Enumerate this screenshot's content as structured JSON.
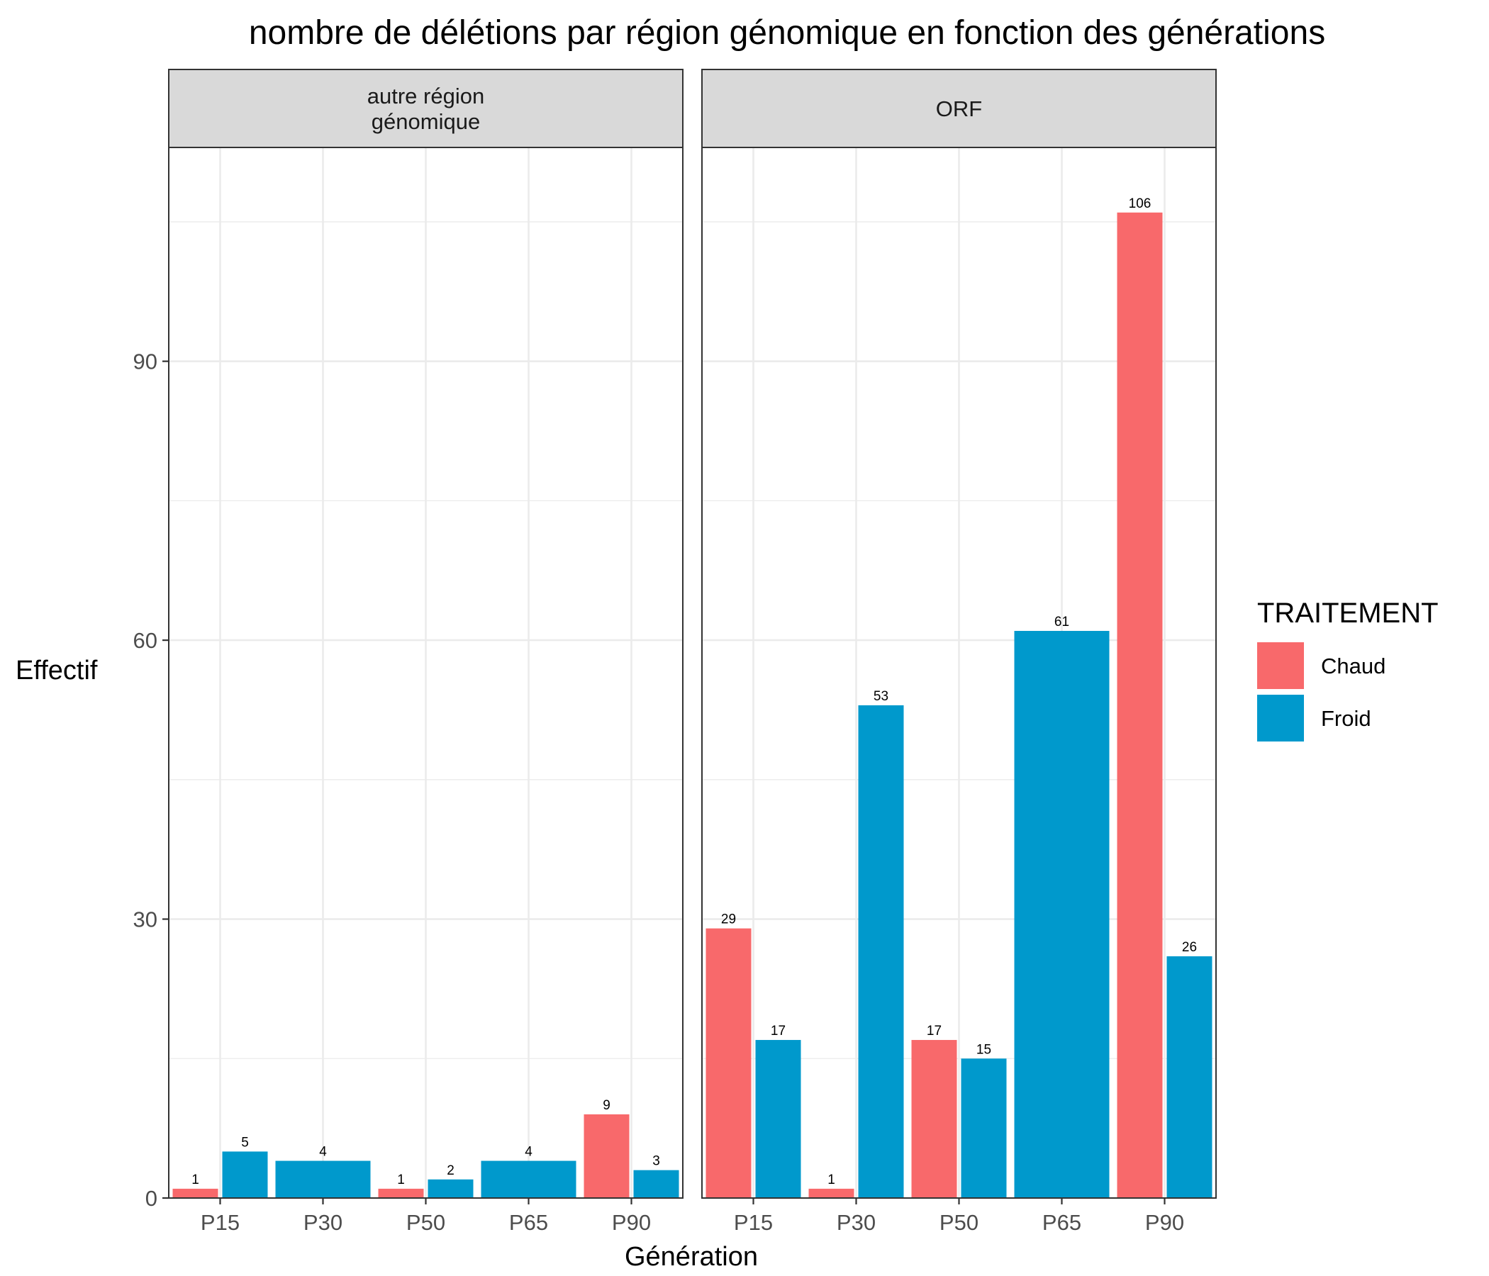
{
  "chart_data": {
    "type": "bar",
    "title": "nombre de délétions par région génomique en fonction des générations",
    "xlabel": "Génération",
    "ylabel": "Effectif",
    "ylim": [
      0,
      113
    ],
    "yticks": [
      0,
      30,
      60,
      90
    ],
    "categories": [
      "P15",
      "P30",
      "P50",
      "P65",
      "P90"
    ],
    "legend": {
      "title": "TRAITEMENT",
      "position": "right",
      "entries": [
        {
          "name": "Chaud",
          "color": "#f8696b"
        },
        {
          "name": "Froid",
          "color": "#0099cc"
        }
      ]
    },
    "colors": {
      "Chaud": "#f8696b",
      "Froid": "#0099cc"
    },
    "grid": true,
    "facets": [
      {
        "label_lines": [
          "autre région",
          "génomique"
        ],
        "bars": [
          {
            "category": "P15",
            "series": "Chaud",
            "value": 1
          },
          {
            "category": "P15",
            "series": "Froid",
            "value": 5
          },
          {
            "category": "P30",
            "series": "Froid",
            "value": 4
          },
          {
            "category": "P50",
            "series": "Chaud",
            "value": 1
          },
          {
            "category": "P50",
            "series": "Froid",
            "value": 2
          },
          {
            "category": "P65",
            "series": "Froid",
            "value": 4
          },
          {
            "category": "P90",
            "series": "Chaud",
            "value": 9
          },
          {
            "category": "P90",
            "series": "Froid",
            "value": 3
          }
        ]
      },
      {
        "label_lines": [
          "ORF"
        ],
        "bars": [
          {
            "category": "P15",
            "series": "Chaud",
            "value": 29
          },
          {
            "category": "P15",
            "series": "Froid",
            "value": 17
          },
          {
            "category": "P30",
            "series": "Chaud",
            "value": 1
          },
          {
            "category": "P30",
            "series": "Froid",
            "value": 53
          },
          {
            "category": "P50",
            "series": "Chaud",
            "value": 17
          },
          {
            "category": "P50",
            "series": "Froid",
            "value": 15
          },
          {
            "category": "P65",
            "series": "Froid",
            "value": 61
          },
          {
            "category": "P90",
            "series": "Chaud",
            "value": 106
          },
          {
            "category": "P90",
            "series": "Froid",
            "value": 26
          }
        ]
      }
    ]
  }
}
